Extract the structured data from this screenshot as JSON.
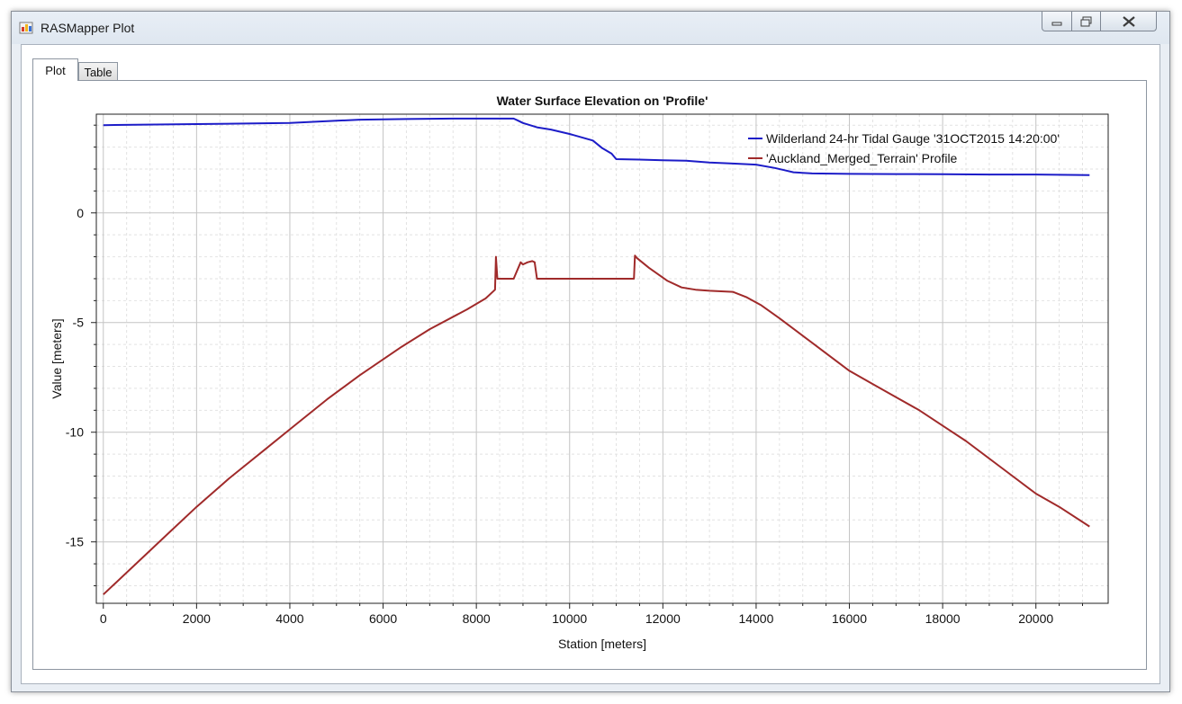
{
  "window": {
    "title": "RASMapper Plot",
    "controls": [
      "minimize",
      "maximize",
      "close"
    ]
  },
  "tabs": [
    {
      "label": "Plot",
      "active": true
    },
    {
      "label": "Table",
      "active": false
    }
  ],
  "chart_data": {
    "type": "line",
    "title": "Water Surface Elevation on 'Profile'",
    "xlabel": "Station [meters]",
    "ylabel": "Value [meters]",
    "xlim": [
      -150,
      21550
    ],
    "ylim": [
      -17.8,
      4.5
    ],
    "xticks": [
      0,
      2000,
      4000,
      6000,
      8000,
      10000,
      12000,
      14000,
      16000,
      18000,
      20000
    ],
    "yticks": [
      0,
      -5,
      -10,
      -15
    ],
    "grid": true,
    "legend_position": "top-right",
    "series": [
      {
        "name": "Wilderland 24-hr Tidal Gauge '31OCT2015 14:20:00'",
        "color": "#1c1cc8",
        "x": [
          0,
          2000,
          4000,
          5000,
          5500,
          6500,
          7500,
          8000,
          8800,
          8900,
          9000,
          9300,
          9600,
          10000,
          10500,
          10700,
          10900,
          11000,
          11500,
          12000,
          12500,
          13000,
          13500,
          14000,
          14400,
          14600,
          14800,
          15200,
          16000,
          17000,
          18000,
          19000,
          20000,
          21150
        ],
        "y": [
          4.0,
          4.05,
          4.1,
          4.2,
          4.25,
          4.28,
          4.3,
          4.3,
          4.3,
          4.2,
          4.1,
          3.9,
          3.8,
          3.6,
          3.3,
          2.95,
          2.7,
          2.45,
          2.43,
          2.4,
          2.38,
          2.3,
          2.25,
          2.2,
          2.05,
          1.95,
          1.85,
          1.8,
          1.78,
          1.77,
          1.76,
          1.75,
          1.75,
          1.72
        ]
      },
      {
        "name": "'Auckland_Merged_Terrain' Profile",
        "color": "#a02a2a",
        "x": [
          0,
          700,
          1400,
          2000,
          2700,
          3400,
          4100,
          4800,
          5500,
          6400,
          7000,
          7800,
          8200,
          8400,
          8420,
          8450,
          8480,
          8500,
          8800,
          8950,
          9000,
          9100,
          9200,
          9250,
          9300,
          9700,
          10200,
          10700,
          11200,
          11380,
          11400,
          11440,
          11700,
          12100,
          12400,
          12700,
          13000,
          13500,
          13800,
          14100,
          14500,
          15000,
          15500,
          16000,
          16500,
          17000,
          17500,
          18000,
          18500,
          19000,
          19500,
          20000,
          20500,
          21150
        ],
        "y": [
          -17.4,
          -16.0,
          -14.6,
          -13.4,
          -12.1,
          -10.9,
          -9.7,
          -8.5,
          -7.4,
          -6.1,
          -5.3,
          -4.4,
          -3.9,
          -3.5,
          -2.0,
          -3.0,
          -3.0,
          -3.0,
          -3.0,
          -2.25,
          -2.35,
          -2.25,
          -2.2,
          -2.25,
          -3.0,
          -3.0,
          -3.0,
          -3.0,
          -3.0,
          -3.0,
          -1.95,
          -2.05,
          -2.5,
          -3.1,
          -3.4,
          -3.5,
          -3.55,
          -3.6,
          -3.85,
          -4.2,
          -4.8,
          -5.6,
          -6.4,
          -7.2,
          -7.8,
          -8.4,
          -9.0,
          -9.7,
          -10.4,
          -11.2,
          -12.0,
          -12.8,
          -13.4,
          -14.3
        ]
      }
    ]
  }
}
